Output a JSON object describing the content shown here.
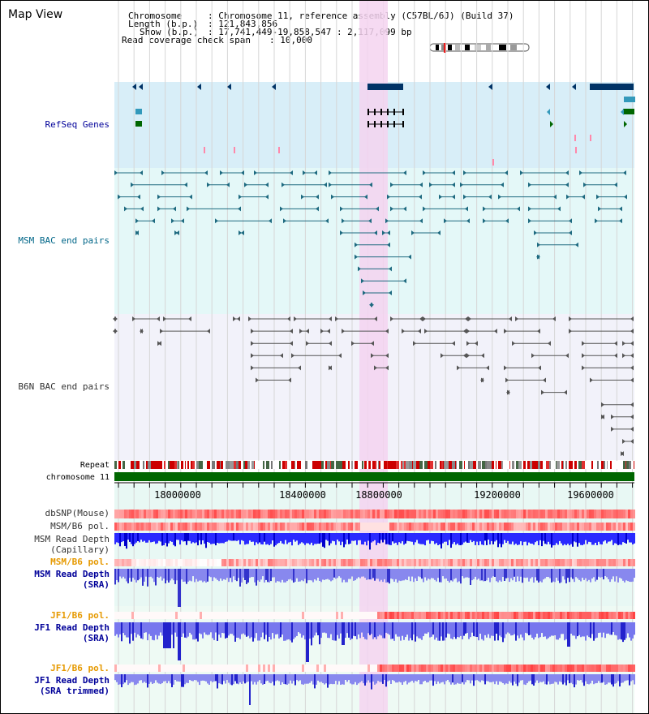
{
  "title": "Map View",
  "info": {
    "chromosome_label": "Chromosome",
    "chromosome_value": ": Chromosome 11, reference assembly (C57BL/6J) (Build 37)",
    "length_label": "Length (b.p.)",
    "length_value": ": 121,843,856",
    "show_label": "Show (b.p.)",
    "show_value": ": 17,741,449-19,858,547 : 2,117,099 bp",
    "coverage_label": "Read coverage check span",
    "coverage_value": ": 10,000"
  },
  "tracks": {
    "refseq": "RefSeq Genes",
    "msm_bac": "MSM BAC end pairs",
    "b6n_bac": "B6N BAC end pairs",
    "repeat": "Repeat",
    "chromosome": "chromosome 11",
    "dbsnp": "dbSNP(Mouse)",
    "msm_b6_pol_1": "MSM/B6 pol.",
    "msm_read_depth_cap_1": "MSM Read Depth",
    "msm_read_depth_cap_2": "(Capillary)",
    "msm_b6_pol_2": "MSM/B6 pol.",
    "msm_read_depth_sra_1": "MSM Read Depth",
    "msm_read_depth_sra_2": "(SRA)",
    "jf1_b6_pol_1": "JF1/B6 pol.",
    "jf1_read_depth_sra_1": "JF1 Read Depth",
    "jf1_read_depth_sra_2": "(SRA)",
    "jf1_b6_pol_2": "JF1/B6 pol.",
    "jf1_read_depth_trim_1": "JF1 Read Depth",
    "jf1_read_depth_trim_2": "(SRA trimmed)"
  },
  "axis": {
    "ticks": [
      "18000000",
      "18400000",
      "18800000",
      "19200000",
      "19600000"
    ]
  },
  "colors": {
    "refseq_bg": "#d8eef8",
    "msm_bg": "#e4f8f8",
    "b6n_bg": "#f2f2fa",
    "highlight": "#f5d4f0",
    "refseq_label": "#000099",
    "msm_label": "#006688",
    "b6n_label": "#333333",
    "orange_label": "#e69900",
    "blue_label": "#000099",
    "chromosome_bar": "#006600"
  }
}
